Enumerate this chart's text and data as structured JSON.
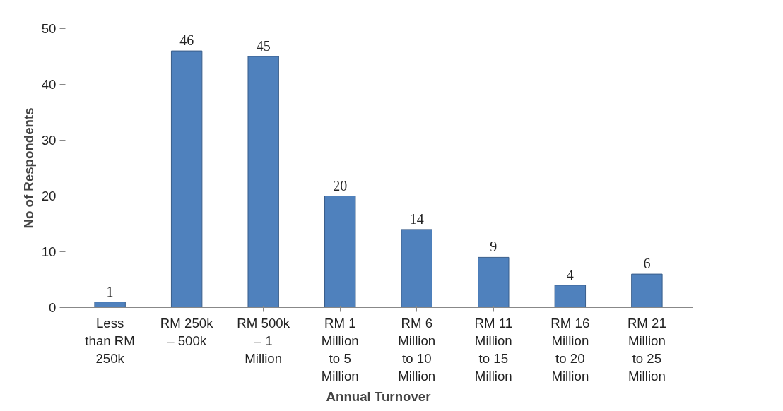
{
  "chart_data": {
    "type": "bar",
    "xlabel": "Annual Turnover",
    "ylabel": "No of Respondents",
    "categories": [
      "Less than RM 250k",
      "RM 250k – 500k",
      "RM 500k – 1 Million",
      "RM 1 Million to 5 Million",
      "RM 6 Million to 10 Million",
      "RM 11 Million to 15 Million",
      "RM 16 Million to 20 Million",
      "RM 21 Million to 25 Million"
    ],
    "values": [
      1,
      46,
      45,
      20,
      14,
      9,
      4,
      6
    ],
    "color": "#4f81bd",
    "ylim": [
      0,
      50
    ],
    "yticks": [
      0,
      10,
      20,
      30,
      40,
      50
    ],
    "grid": false,
    "data_labels": true
  }
}
